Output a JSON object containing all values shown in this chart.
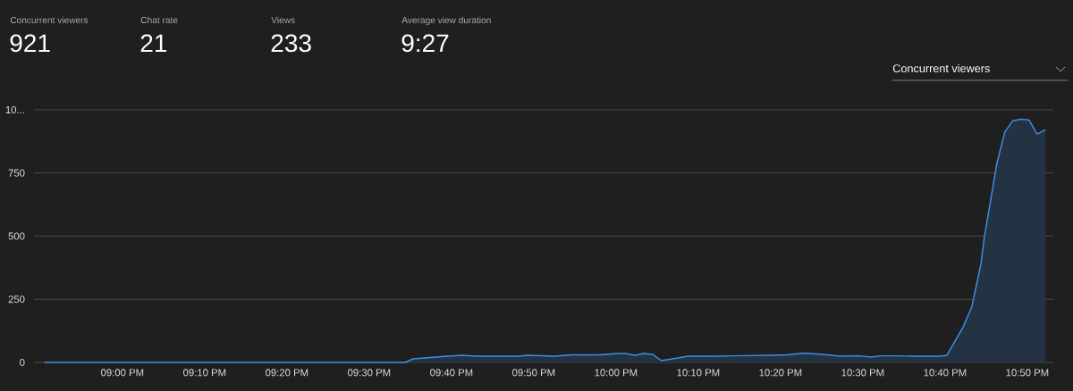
{
  "chart_data": {
    "type": "area",
    "color": "#3d8fe6",
    "x": [
      20.842,
      21.573,
      21.589,
      21.658,
      21.688,
      21.717,
      21.803,
      21.821,
      21.875,
      21.911,
      21.966,
      22.002,
      22.02,
      22.038,
      22.056,
      22.074,
      22.092,
      22.147,
      22.201,
      22.237,
      22.31,
      22.346,
      22.382,
      22.419,
      22.455,
      22.491,
      22.518,
      22.536,
      22.563,
      22.6,
      22.654,
      22.67,
      22.703,
      22.721,
      22.739,
      22.746,
      22.772,
      22.788,
      22.804,
      22.821,
      22.837,
      22.853,
      22.87
    ],
    "values": [
      0,
      0,
      14,
      25,
      28,
      25,
      25,
      28,
      25,
      30,
      30,
      35,
      35,
      28,
      35,
      32,
      7,
      25,
      25,
      26,
      28,
      30,
      37,
      32,
      25,
      26,
      21,
      26,
      26,
      25,
      25,
      27,
      139,
      221,
      386,
      492,
      792,
      913,
      957,
      963,
      959,
      904,
      921
    ],
    "xlim": [
      20.821,
      22.886
    ],
    "ylim": [
      0,
      1000
    ],
    "xticks": [
      {
        "value": 21,
        "label": "09:00 PM"
      },
      {
        "value": 21.1667,
        "label": "09:10 PM"
      },
      {
        "value": 21.3333,
        "label": "09:20 PM"
      },
      {
        "value": 21.5,
        "label": "09:30 PM"
      },
      {
        "value": 21.6667,
        "label": "09:40 PM"
      },
      {
        "value": 21.8333,
        "label": "09:50 PM"
      },
      {
        "value": 22,
        "label": "10:00 PM"
      },
      {
        "value": 22.1667,
        "label": "10:10 PM"
      },
      {
        "value": 22.3333,
        "label": "10:20 PM"
      },
      {
        "value": 22.5,
        "label": "10:30 PM"
      },
      {
        "value": 22.6667,
        "label": "10:40 PM"
      },
      {
        "value": 22.8333,
        "label": "10:50 PM"
      }
    ],
    "yticks": [
      0,
      250,
      500,
      750,
      {
        "value": 1000,
        "label": "10..."
      }
    ],
    "grid": "y",
    "annotations": [
      "Concurrent viewers",
      "921",
      "Chat rate",
      "21",
      "Views",
      "233",
      "Average view duration",
      "9:27",
      "Concurrent viewers"
    ]
  }
}
